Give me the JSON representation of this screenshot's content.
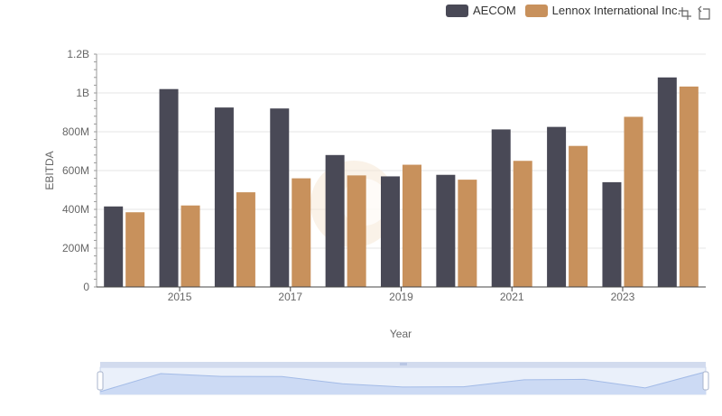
{
  "legend": {
    "items": [
      {
        "name": "AECOM",
        "color": "#494956"
      },
      {
        "name": "Lennox International Inc.",
        "color": "#c8915c"
      }
    ]
  },
  "toolbox": {
    "icons": [
      "zoom-icon",
      "restore-icon"
    ]
  },
  "chart_data": {
    "type": "bar",
    "xlabel": "Year",
    "ylabel": "EBITDA",
    "x": [
      2014,
      2015,
      2016,
      2017,
      2018,
      2019,
      2020,
      2021,
      2022,
      2023,
      2024
    ],
    "x_tick_labels": [
      "2015",
      "2017",
      "2019",
      "2021",
      "2023"
    ],
    "y_tick_labels": [
      "0",
      "200M",
      "400M",
      "600M",
      "800M",
      "1B",
      "1.2B"
    ],
    "ylim": [
      0,
      1200000000
    ],
    "grid": true,
    "legend_position": "top-right",
    "series": [
      {
        "name": "AECOM",
        "color": "#494956",
        "values": [
          415000000,
          1020000000,
          925000000,
          920000000,
          680000000,
          570000000,
          578000000,
          812000000,
          825000000,
          540000000,
          1080000000
        ]
      },
      {
        "name": "Lennox International Inc.",
        "color": "#c8915c",
        "values": [
          385000000,
          420000000,
          488000000,
          560000000,
          575000000,
          630000000,
          553000000,
          650000000,
          727000000,
          877000000,
          1033000000
        ]
      }
    ]
  }
}
